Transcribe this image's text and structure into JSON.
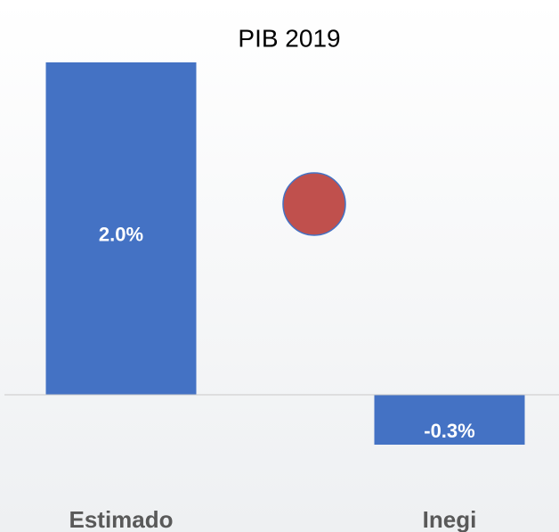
{
  "chart_data": {
    "type": "bar",
    "title": "PIB 2019",
    "categories": [
      "Estimado",
      "Inegi"
    ],
    "values": [
      2.0,
      -0.3
    ],
    "value_labels": [
      "2.0%",
      "-0.3%"
    ],
    "color": "#4472c4",
    "ylim": [
      -0.3,
      2.0
    ]
  }
}
